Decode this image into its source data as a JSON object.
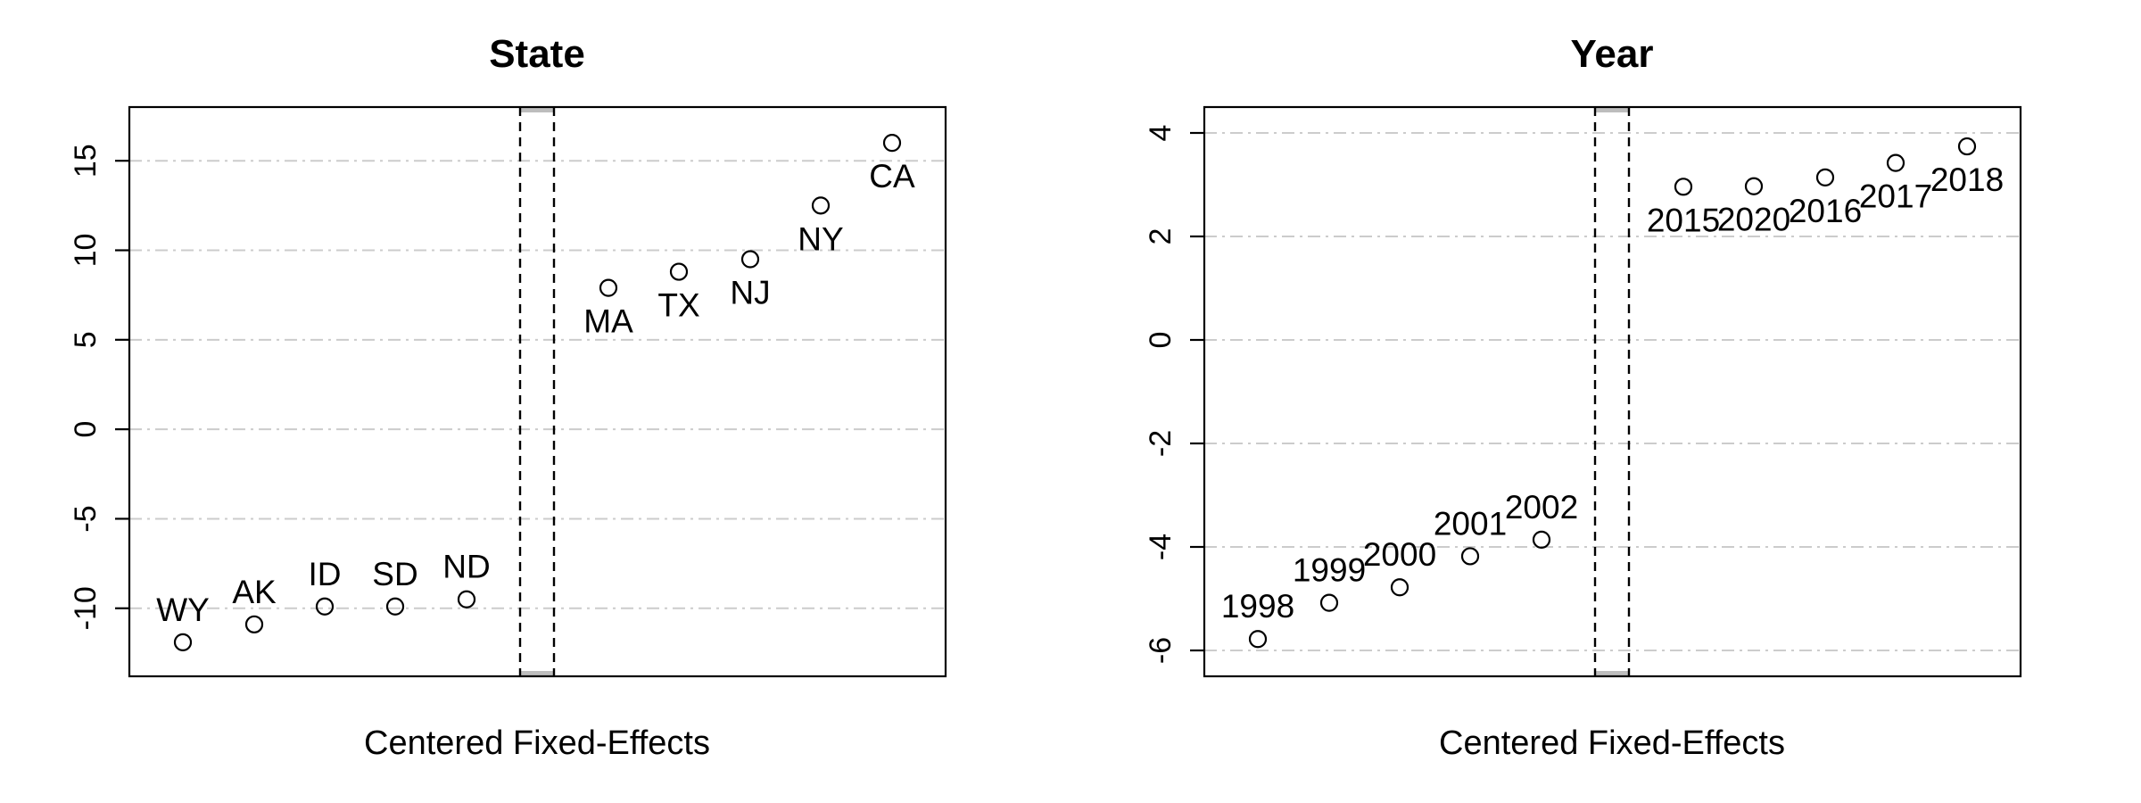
{
  "chart_data": [
    {
      "type": "scatter",
      "title": "State",
      "xlabel": "Centered Fixed-Effects",
      "ylabel": "",
      "ylim": [
        -13.8,
        18
      ],
      "yticks": [
        -10,
        -5,
        0,
        5,
        10,
        15
      ],
      "grid": true,
      "points": [
        {
          "label": "WY",
          "value": -11.9,
          "group": "low"
        },
        {
          "label": "AK",
          "value": -10.9,
          "group": "low"
        },
        {
          "label": "ID",
          "value": -9.9,
          "group": "low"
        },
        {
          "label": "SD",
          "value": -9.9,
          "group": "low"
        },
        {
          "label": "ND",
          "value": -9.5,
          "group": "low"
        },
        {
          "label": "MA",
          "value": 7.9,
          "group": "high"
        },
        {
          "label": "TX",
          "value": 8.8,
          "group": "high"
        },
        {
          "label": "NJ",
          "value": 9.5,
          "group": "high"
        },
        {
          "label": "NY",
          "value": 12.5,
          "group": "high"
        },
        {
          "label": "CA",
          "value": 16.0,
          "group": "high"
        }
      ]
    },
    {
      "type": "scatter",
      "title": "Year",
      "xlabel": "Centered Fixed-Effects",
      "ylabel": "",
      "ylim": [
        -6.5,
        4.5
      ],
      "yticks": [
        -6,
        -4,
        -2,
        0,
        2,
        4
      ],
      "grid": true,
      "points": [
        {
          "label": "1998",
          "value": -5.78,
          "group": "low"
        },
        {
          "label": "1999",
          "value": -5.08,
          "group": "low"
        },
        {
          "label": "2000",
          "value": -4.78,
          "group": "low"
        },
        {
          "label": "2001",
          "value": -4.18,
          "group": "low"
        },
        {
          "label": "2002",
          "value": -3.86,
          "group": "low"
        },
        {
          "label": "2015",
          "value": 2.96,
          "group": "high"
        },
        {
          "label": "2020",
          "value": 2.97,
          "group": "high"
        },
        {
          "label": "2016",
          "value": 3.14,
          "group": "high"
        },
        {
          "label": "2017",
          "value": 3.42,
          "group": "high"
        },
        {
          "label": "2018",
          "value": 3.74,
          "group": "high"
        }
      ]
    }
  ]
}
